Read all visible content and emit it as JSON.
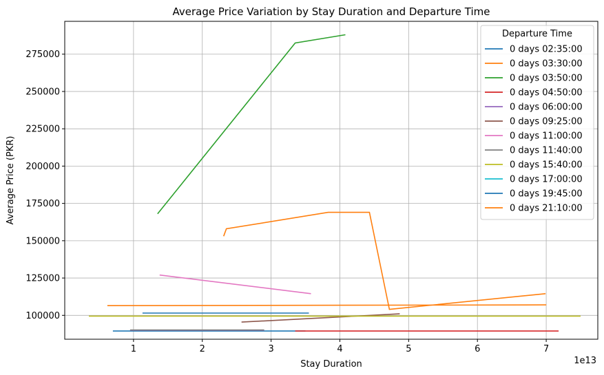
{
  "chart_data": {
    "type": "line",
    "title": "Average Price Variation by Stay Duration and Departure Time",
    "xlabel": "Stay Duration",
    "ylabel": "Average Price (PKR)",
    "x_offset_label": "1e13",
    "x_ticks": [
      1,
      2,
      3,
      4,
      5,
      6,
      7
    ],
    "x_tick_labels": [
      "1",
      "2",
      "3",
      "4",
      "5",
      "6",
      "7"
    ],
    "y_ticks": [
      100000,
      125000,
      150000,
      175000,
      200000,
      225000,
      250000,
      275000
    ],
    "y_tick_labels": [
      "100000",
      "125000",
      "150000",
      "175000",
      "200000",
      "225000",
      "250000",
      "275000"
    ],
    "xlim": [
      0.0,
      7.75
    ],
    "ylim": [
      84000,
      297000
    ],
    "grid": true,
    "legend_title": "Departure Time",
    "legend_position": "top-right",
    "series": [
      {
        "name": "0 days 02:35:00",
        "color": "#1f77b4",
        "x": [
          0.7,
          3.5
        ],
        "y": [
          89500,
          89500
        ]
      },
      {
        "name": "0 days 03:30:00",
        "color": "#ff7f0e",
        "x": [
          0.62,
          7.0
        ],
        "y": [
          106500,
          107000
        ]
      },
      {
        "name": "0 days 03:50:00",
        "color": "#2ca02c",
        "x": [
          1.35,
          3.35,
          4.08
        ],
        "y": [
          168000,
          282500,
          288000
        ]
      },
      {
        "name": "0 days 04:50:00",
        "color": "#d62728",
        "x": [
          3.35,
          7.18
        ],
        "y": [
          89500,
          89500
        ]
      },
      {
        "name": "0 days 06:00:00",
        "color": "#9467bd",
        "x": [
          0.95,
          2.9
        ],
        "y": [
          90000,
          90000
        ]
      },
      {
        "name": "0 days 09:25:00",
        "color": "#8c564b",
        "x": [
          2.57,
          4.87
        ],
        "y": [
          95500,
          101000
        ]
      },
      {
        "name": "0 days 11:00:00",
        "color": "#e377c2",
        "x": [
          1.38,
          3.58
        ],
        "y": [
          127000,
          114500
        ]
      },
      {
        "name": "0 days 11:40:00",
        "color": "#7f7f7f",
        "x": [
          0.95,
          2.9
        ],
        "y": [
          90200,
          90200
        ]
      },
      {
        "name": "0 days 15:40:00",
        "color": "#bcbd22",
        "x": [
          0.35,
          7.5
        ],
        "y": [
          99500,
          99500
        ]
      },
      {
        "name": "0 days 17:00:00",
        "color": "#17becf",
        "x": [],
        "y": []
      },
      {
        "name": "0 days 19:45:00",
        "color": "#1f77b4",
        "x": [
          1.13,
          3.55
        ],
        "y": [
          101500,
          101500
        ]
      },
      {
        "name": "0 days 21:10:00",
        "color": "#ff7f0e",
        "x": [
          2.31,
          2.35,
          3.83,
          4.43,
          4.72,
          6.99
        ],
        "y": [
          153000,
          158000,
          169000,
          169000,
          104000,
          114500
        ]
      }
    ]
  }
}
